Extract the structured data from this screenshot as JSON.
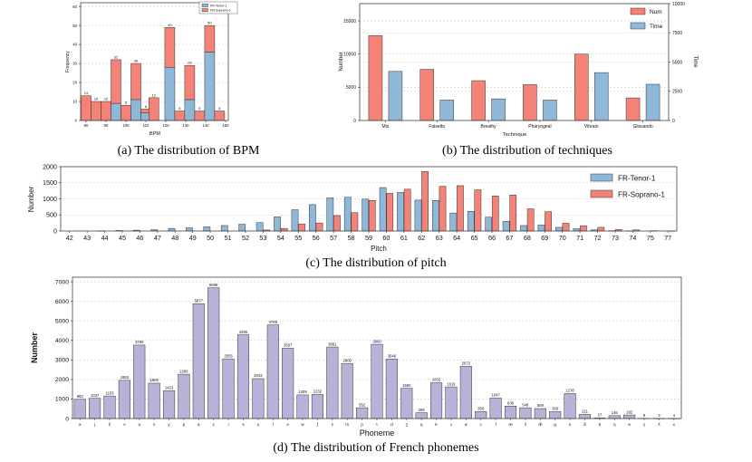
{
  "captions": {
    "a": "(a) The distribution of BPM",
    "b": "(b) The distribution of techniques",
    "c": "(c) The distribution of pitch",
    "d": "(d) The distribution of French phonemes"
  },
  "colors": {
    "tenor_blue": "#8FB8D8",
    "soprano_salmon": "#F58277",
    "phoneme_purple": "#B8B2D8",
    "bar_edge": "#333333",
    "grid": "#cccccc",
    "frame": "#444444"
  },
  "chart_data": [
    {
      "id": "bpm",
      "type": "bar",
      "stacked": true,
      "xlabel": "BPM",
      "ylabel": "Frequency",
      "x": [
        80,
        85,
        90,
        95,
        100,
        105,
        110,
        114,
        122,
        127,
        132,
        137,
        142,
        147
      ],
      "xticks": [
        80,
        90,
        100,
        110,
        120,
        130,
        140,
        150
      ],
      "yticks": [
        0,
        10,
        20,
        30,
        40,
        50,
        60
      ],
      "ylim": [
        0,
        62
      ],
      "grid": true,
      "legend_position": "top-right",
      "series": [
        {
          "name": "FR-Tenor-1",
          "color": "tenor_blue",
          "values": [
            0,
            0,
            0,
            9,
            0,
            11,
            4,
            0,
            28,
            0,
            11,
            0,
            36,
            0
          ]
        },
        {
          "name": "FR-Soprano-1",
          "color": "soprano_salmon",
          "values": [
            13,
            10,
            10,
            23,
            8,
            19,
            2,
            12,
            21,
            5,
            18,
            5,
            14,
            5
          ]
        }
      ],
      "totals": [
        13,
        10,
        10,
        32,
        8,
        30,
        6,
        12,
        49,
        5,
        29,
        5,
        50,
        5
      ]
    },
    {
      "id": "techniques",
      "type": "bar",
      "grouped": true,
      "xlabel": "Technique",
      "ylabel_left": "Number",
      "ylabel_right": "Time",
      "categories": [
        "Mix",
        "Falsetto",
        "Breathy",
        "Pharyngeal",
        "Vibrato",
        "Glissando"
      ],
      "yticks_left": [
        0,
        5000,
        10000,
        15000
      ],
      "ylim_left": [
        0,
        17600
      ],
      "yticks_right": [
        0,
        2500,
        5000,
        7500,
        10000
      ],
      "ylim_right": [
        0,
        10000
      ],
      "grid": true,
      "legend_position": "top-right",
      "series": [
        {
          "name": "Num",
          "axis": "left",
          "color": "soprano_salmon",
          "values": [
            12800,
            7700,
            6000,
            5400,
            10000,
            3400
          ]
        },
        {
          "name": "Time",
          "axis": "right",
          "color": "tenor_blue",
          "values": [
            4200,
            1750,
            1850,
            1750,
            4100,
            3100
          ]
        }
      ]
    },
    {
      "id": "pitch",
      "type": "bar",
      "grouped": true,
      "xlabel": "Pitch",
      "ylabel": "Number",
      "categories": [
        "42",
        "43",
        "44",
        "45",
        "46",
        "47",
        "48",
        "49",
        "50",
        "51",
        "52",
        "53",
        "54",
        "55",
        "56",
        "57",
        "58",
        "59",
        "60",
        "61",
        "62",
        "63",
        "64",
        "65",
        "66",
        "67",
        "68",
        "69",
        "70",
        "71",
        "72",
        "73",
        "74",
        "75",
        "77"
      ],
      "yticks": [
        0,
        500,
        1000,
        1500,
        2000
      ],
      "ylim": [
        0,
        2000
      ],
      "grid": true,
      "legend_position": "top-right",
      "series": [
        {
          "name": "FR-Tenor-1",
          "color": "tenor_blue",
          "values": [
            0,
            0,
            5,
            15,
            25,
            40,
            80,
            100,
            130,
            170,
            210,
            260,
            440,
            660,
            820,
            1030,
            1050,
            990,
            1350,
            1200,
            960,
            950,
            560,
            610,
            430,
            300,
            170,
            185,
            115,
            70,
            35,
            10,
            5,
            0,
            0
          ]
        },
        {
          "name": "FR-Soprano-1",
          "color": "soprano_salmon",
          "values": [
            0,
            0,
            0,
            0,
            0,
            0,
            0,
            0,
            0,
            0,
            0,
            30,
            80,
            220,
            250,
            480,
            570,
            950,
            1170,
            1300,
            1850,
            1390,
            1410,
            1280,
            1090,
            1120,
            690,
            600,
            240,
            165,
            115,
            45,
            35,
            10,
            5
          ]
        }
      ]
    },
    {
      "id": "phonemes",
      "type": "bar",
      "xlabel": "Phoneme",
      "ylabel": "Number",
      "categories": [
        "ə",
        "j",
        "ɛ̃",
        "v",
        "ɑ",
        "n",
        "y",
        "p",
        "a",
        "ɛ",
        "i",
        "s",
        "u",
        "l",
        "e",
        "w",
        "ʃ",
        "z",
        "m",
        "ɲ",
        "t",
        "d",
        "ʒ",
        "ɥ",
        "k",
        "ɔ",
        "ø",
        "c",
        "f",
        "œ",
        "ɔ̃",
        "œ̃",
        "g",
        "o",
        "ɑ̃",
        "b",
        "ŋ",
        "ʁ",
        "ç",
        "ʎ",
        "x"
      ],
      "values": [
        983,
        1037,
        1153,
        1953,
        3760,
        1809,
        1423,
        2266,
        5877,
        6696,
        3055,
        4286,
        2042,
        4789,
        3597,
        1209,
        1232,
        3661,
        2809,
        552,
        3800,
        3046,
        1550,
        298,
        1832,
        1619,
        2672,
        360,
        1047,
        638,
        549,
        509,
        356,
        1278,
        211,
        27,
        146,
        182,
        9,
        3,
        4
      ],
      "yticks": [
        0,
        1000,
        2000,
        3000,
        4000,
        5000,
        6000,
        7000
      ],
      "ylim": [
        0,
        7235
      ],
      "grid": true,
      "bar_labels": true,
      "bar_color": "phoneme_purple"
    }
  ]
}
